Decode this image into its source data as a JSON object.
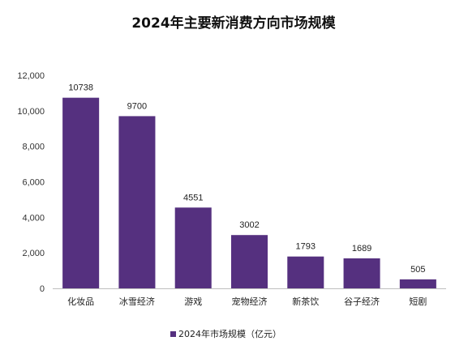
{
  "chart_data": {
    "type": "bar",
    "title": "2024年主要新消费方向市场规模",
    "categories": [
      "化妆品",
      "冰雪经济",
      "游戏",
      "宠物经济",
      "新茶饮",
      "谷子经济",
      "短剧"
    ],
    "series": [
      {
        "name": "2024年市场规模（亿元）",
        "values": [
          10738,
          9700,
          4551,
          3002,
          1793,
          1689,
          505
        ]
      }
    ],
    "yticks": [
      "0",
      "2,000",
      "4,000",
      "6,000",
      "8,000",
      "10,000",
      "12,000"
    ],
    "ylim": [
      0,
      12000
    ],
    "grid": false,
    "legend": "bottom",
    "bar_color": "#55307f",
    "xlabel": "",
    "ylabel": ""
  }
}
